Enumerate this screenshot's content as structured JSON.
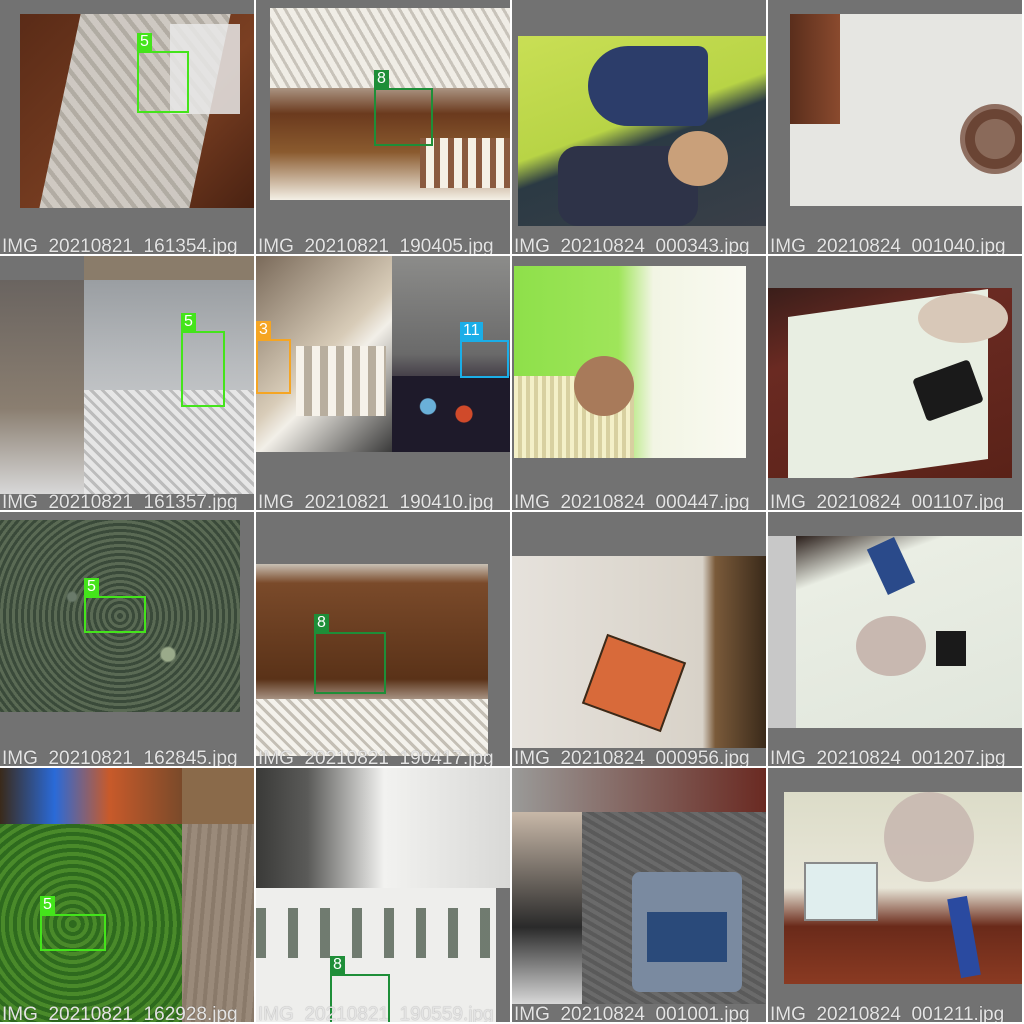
{
  "colors": {
    "class_5": "#44e41b",
    "class_8": "#1e8e38",
    "class_3": "#f5a523",
    "class_11": "#1aaee8",
    "tile_bg": "#727272",
    "label_text": "#e4e4e4"
  },
  "tiles": [
    {
      "filename": "IMG_20210821_161354.jpg",
      "boxes": [
        {
          "label": "5"
        }
      ]
    },
    {
      "filename": "IMG_20210821_190405.jpg",
      "boxes": [
        {
          "label": "8"
        }
      ]
    },
    {
      "filename": "IMG_20210824_000343.jpg",
      "boxes": []
    },
    {
      "filename": "IMG_20210824_001040.jpg",
      "boxes": []
    },
    {
      "filename": "IMG_20210821_161357.jpg",
      "boxes": [
        {
          "label": "5"
        }
      ]
    },
    {
      "filename": "IMG_20210821_190410.jpg",
      "boxes": [
        {
          "label": "3"
        },
        {
          "label": "11"
        }
      ]
    },
    {
      "filename": "IMG_20210824_000447.jpg",
      "boxes": []
    },
    {
      "filename": "IMG_20210824_001107.jpg",
      "boxes": []
    },
    {
      "filename": "IMG_20210821_162845.jpg",
      "boxes": [
        {
          "label": "5"
        }
      ]
    },
    {
      "filename": "IMG_20210821_190417.jpg",
      "boxes": [
        {
          "label": "8"
        }
      ]
    },
    {
      "filename": "IMG_20210824_000956.jpg",
      "boxes": []
    },
    {
      "filename": "IMG_20210824_001207.jpg",
      "boxes": []
    },
    {
      "filename": "IMG_20210821_162928.jpg",
      "boxes": [
        {
          "label": "5"
        }
      ]
    },
    {
      "filename": "IMG_20210821_190559.jpg",
      "boxes": [
        {
          "label": "8"
        }
      ]
    },
    {
      "filename": "IMG_20210824_001001.jpg",
      "boxes": []
    },
    {
      "filename": "IMG_20210824_001211.jpg",
      "boxes": []
    }
  ]
}
